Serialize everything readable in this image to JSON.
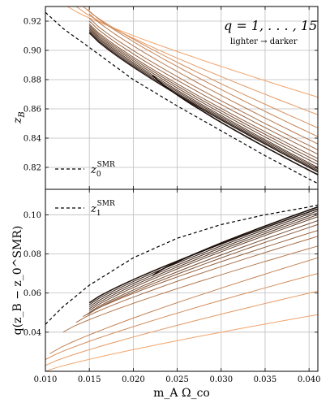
{
  "chart_data": [
    {
      "type": "line",
      "panel": "top",
      "ylabel_main": "z",
      "ylabel_sub": "B",
      "xlim": [
        0.01,
        0.041
      ],
      "ylim": [
        0.805,
        0.93
      ],
      "xticks": [
        0.01,
        0.015,
        0.02,
        0.025,
        0.03,
        0.035,
        0.04
      ],
      "yticks": [
        0.82,
        0.84,
        0.86,
        0.88,
        0.9,
        0.92
      ],
      "ytick_labels": [
        "0.82",
        "0.84",
        "0.86",
        "0.88",
        "0.90",
        "0.92"
      ],
      "grid": true,
      "annotation_main": "q = 1, . . . , 15",
      "annotation_sub": "lighter → darker",
      "legend": {
        "placement": "lower-left",
        "main": "z",
        "sub": "0",
        "sup": "SMR",
        "style": "dashed"
      },
      "reference_curve": {
        "x": [
          0.01,
          0.012,
          0.015,
          0.02,
          0.025,
          0.03,
          0.035,
          0.04,
          0.041
        ],
        "y": [
          0.926,
          0.915,
          0.902,
          0.88,
          0.862,
          0.845,
          0.828,
          0.812,
          0.809
        ]
      },
      "series_q": [
        1,
        2,
        3,
        4,
        5,
        6,
        7,
        8,
        9,
        10,
        11,
        12,
        13,
        14,
        15
      ],
      "series_x_start": [
        0.0125,
        0.0135,
        0.0143,
        0.0148,
        0.015,
        0.015,
        0.015,
        0.015,
        0.015,
        0.015,
        0.015,
        0.015,
        0.015,
        0.015,
        0.0222
      ],
      "series_y_start": [
        0.93,
        0.93,
        0.93,
        0.928,
        0.925,
        0.922,
        0.92,
        0.918,
        0.917,
        0.916,
        0.915,
        0.914,
        0.913,
        0.912,
        0.883
      ],
      "series_y_end": [
        0.868,
        0.856,
        0.847,
        0.841,
        0.836,
        0.832,
        0.829,
        0.826,
        0.824,
        0.822,
        0.82,
        0.819,
        0.818,
        0.817,
        0.815
      ]
    },
    {
      "type": "line",
      "panel": "bottom",
      "ylabel": "q(z_B − z_0^SMR)",
      "xlabel": "m_A Ω_co",
      "xlim": [
        0.01,
        0.041
      ],
      "ylim": [
        0.02,
        0.113
      ],
      "xticks": [
        0.01,
        0.015,
        0.02,
        0.025,
        0.03,
        0.035,
        0.04
      ],
      "xtick_labels": [
        "0.010",
        "0.015",
        "0.020",
        "0.025",
        "0.030",
        "0.035",
        "0.040"
      ],
      "yticks": [
        0.04,
        0.06,
        0.08,
        0.1
      ],
      "ytick_labels": [
        "0.04",
        "0.06",
        "0.08",
        "0.10"
      ],
      "grid": true,
      "legend": {
        "placement": "upper-left",
        "main": "z",
        "sub": "1",
        "sup": "SMR",
        "style": "dashed"
      },
      "reference_curve": {
        "x": [
          0.01,
          0.012,
          0.015,
          0.02,
          0.025,
          0.03,
          0.035,
          0.04,
          0.041
        ],
        "y": [
          0.044,
          0.053,
          0.064,
          0.078,
          0.088,
          0.095,
          0.1,
          0.104,
          0.105
        ]
      },
      "series_q": [
        1,
        2,
        3,
        4,
        5,
        6,
        7,
        8,
        9,
        10,
        11,
        12,
        13,
        14,
        15
      ],
      "series_x_start": [
        0.01,
        0.01,
        0.01,
        0.0105,
        0.012,
        0.0135,
        0.0143,
        0.0148,
        0.015,
        0.015,
        0.015,
        0.015,
        0.015,
        0.015,
        0.0222
      ],
      "series_y_start": [
        0.02,
        0.023,
        0.026,
        0.029,
        0.04,
        0.045,
        0.048,
        0.049,
        0.05,
        0.051,
        0.052,
        0.053,
        0.054,
        0.055,
        0.069
      ],
      "series_y_end": [
        0.049,
        0.061,
        0.07,
        0.078,
        0.084,
        0.089,
        0.092,
        0.095,
        0.097,
        0.099,
        0.1,
        0.101,
        0.102,
        0.103,
        0.104
      ]
    }
  ]
}
